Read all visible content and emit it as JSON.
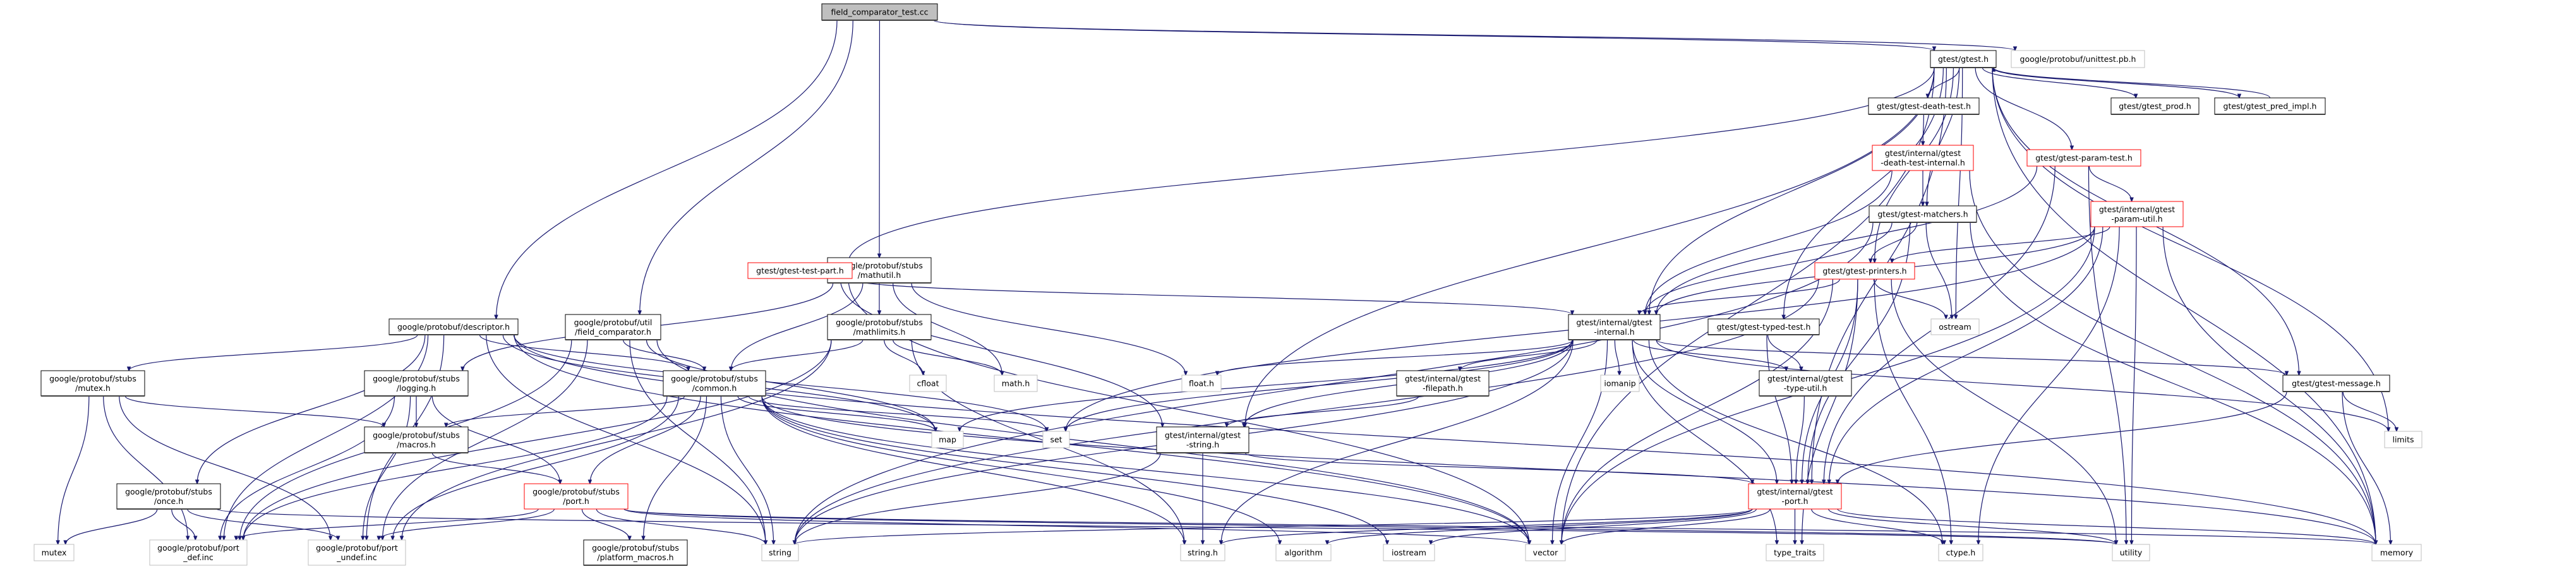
{
  "title": "field_comparator_test.cc",
  "colors": {
    "edge": "#191970",
    "root_fill": "#bfbfbf",
    "node_border": "#000000",
    "truncated_border": "#ff0000",
    "external_border": "#bfbfbf"
  },
  "nodes": {
    "root": {
      "label": "field_comparator_test.cc",
      "kind": "root"
    },
    "descriptor": {
      "label": "google/protobuf/descriptor.h",
      "kind": "normal"
    },
    "fcmp": {
      "label": "google/protobuf/util\n/field_comparator.h",
      "kind": "normal"
    },
    "mathutil": {
      "label": "google/protobuf/stubs\n/mathutil.h",
      "kind": "normal"
    },
    "mathlimits": {
      "label": "google/protobuf/stubs\n/mathlimits.h",
      "kind": "normal"
    },
    "mutexh": {
      "label": "google/protobuf/stubs\n/mutex.h",
      "kind": "normal"
    },
    "logging": {
      "label": "google/protobuf/stubs\n/logging.h",
      "kind": "normal"
    },
    "common": {
      "label": "google/protobuf/stubs\n/common.h",
      "kind": "normal"
    },
    "macros": {
      "label": "google/protobuf/stubs\n/macros.h",
      "kind": "normal"
    },
    "once": {
      "label": "google/protobuf/stubs\n/once.h",
      "kind": "normal"
    },
    "port": {
      "label": "google/protobuf/stubs\n/port.h",
      "kind": "truncated"
    },
    "mutex": {
      "label": "mutex",
      "kind": "external"
    },
    "portdef": {
      "label": "google/protobuf/port\n_def.inc",
      "kind": "external"
    },
    "portundef": {
      "label": "google/protobuf/port\n_undef.inc",
      "kind": "external"
    },
    "platform": {
      "label": "google/protobuf/stubs\n/platform_macros.h",
      "kind": "normal"
    },
    "string": {
      "label": "string",
      "kind": "external"
    },
    "cfloat": {
      "label": "cfloat",
      "kind": "external"
    },
    "math": {
      "label": "math.h",
      "kind": "external"
    },
    "float": {
      "label": "float.h",
      "kind": "external"
    },
    "internal": {
      "label": "gtest/internal/gtest\n-internal.h",
      "kind": "normal"
    },
    "filepath": {
      "label": "gtest/internal/gtest\n-filepath.h",
      "kind": "normal"
    },
    "iomanip": {
      "label": "iomanip",
      "kind": "external"
    },
    "map": {
      "label": "map",
      "kind": "external"
    },
    "set": {
      "label": "set",
      "kind": "external"
    },
    "gstring": {
      "label": "gtest/internal/gtest\n-string.h",
      "kind": "normal"
    },
    "stringh": {
      "label": "string.h",
      "kind": "external"
    },
    "algorithm": {
      "label": "algorithm",
      "kind": "external"
    },
    "iostream": {
      "label": "iostream",
      "kind": "external"
    },
    "vector": {
      "label": "vector",
      "kind": "external"
    },
    "gtest": {
      "label": "gtest/gtest.h",
      "kind": "normal"
    },
    "unittest": {
      "label": "google/protobuf/unittest.pb.h",
      "kind": "external"
    },
    "death": {
      "label": "gtest/gtest-death-test.h",
      "kind": "normal"
    },
    "prod": {
      "label": "gtest/gtest_prod.h",
      "kind": "normal"
    },
    "pred": {
      "label": "gtest/gtest_pred_impl.h",
      "kind": "normal"
    },
    "deathint": {
      "label": "gtest/internal/gtest\n-death-test-internal.h",
      "kind": "truncated"
    },
    "param": {
      "label": "gtest/gtest-param-test.h",
      "kind": "truncated"
    },
    "matchers": {
      "label": "gtest/gtest-matchers.h",
      "kind": "normal"
    },
    "paramutil": {
      "label": "gtest/internal/gtest\n-param-util.h",
      "kind": "truncated"
    },
    "printers": {
      "label": "gtest/gtest-printers.h",
      "kind": "truncated"
    },
    "testpart": {
      "label": "gtest/gtest-test-part.h",
      "kind": "truncated"
    },
    "typed": {
      "label": "gtest/gtest-typed-test.h",
      "kind": "normal"
    },
    "ostream": {
      "label": "ostream",
      "kind": "external"
    },
    "typeutil": {
      "label": "gtest/internal/gtest\n-type-util.h",
      "kind": "normal"
    },
    "message": {
      "label": "gtest/gtest-message.h",
      "kind": "normal"
    },
    "limits": {
      "label": "limits",
      "kind": "external"
    },
    "gport": {
      "label": "gtest/internal/gtest\n-port.h",
      "kind": "truncated"
    },
    "typetraits": {
      "label": "type_traits",
      "kind": "external"
    },
    "ctype": {
      "label": "ctype.h",
      "kind": "external"
    },
    "utility": {
      "label": "utility",
      "kind": "external"
    },
    "memory": {
      "label": "memory",
      "kind": "external"
    }
  },
  "edges": [
    [
      "root",
      "descriptor"
    ],
    [
      "root",
      "fcmp"
    ],
    [
      "root",
      "mathutil"
    ],
    [
      "root",
      "gtest"
    ],
    [
      "root",
      "unittest"
    ],
    [
      "descriptor",
      "mutexh"
    ],
    [
      "descriptor",
      "once"
    ],
    [
      "descriptor",
      "common"
    ],
    [
      "descriptor",
      "portdef"
    ],
    [
      "descriptor",
      "portundef"
    ],
    [
      "descriptor",
      "string"
    ],
    [
      "descriptor",
      "map"
    ],
    [
      "descriptor",
      "set"
    ],
    [
      "descriptor",
      "vector"
    ],
    [
      "descriptor",
      "memory"
    ],
    [
      "fcmp",
      "common"
    ],
    [
      "fcmp",
      "portdef"
    ],
    [
      "fcmp",
      "portundef"
    ],
    [
      "fcmp",
      "string"
    ],
    [
      "fcmp",
      "map"
    ],
    [
      "fcmp",
      "vector"
    ],
    [
      "mathutil",
      "logging"
    ],
    [
      "mathutil",
      "common"
    ],
    [
      "mathutil",
      "mathlimits"
    ],
    [
      "mathutil",
      "math"
    ],
    [
      "mathutil",
      "float"
    ],
    [
      "mathlimits",
      "common"
    ],
    [
      "mathlimits",
      "cfloat"
    ],
    [
      "mathlimits",
      "math"
    ],
    [
      "mathlimits",
      "stringh"
    ],
    [
      "mathlimits",
      "portdef"
    ],
    [
      "mathlimits",
      "portundef"
    ],
    [
      "mutexh",
      "mutex"
    ],
    [
      "mutexh",
      "macros"
    ],
    [
      "mutexh",
      "portdef"
    ],
    [
      "mutexh",
      "portundef"
    ],
    [
      "logging",
      "macros"
    ],
    [
      "logging",
      "port"
    ],
    [
      "logging",
      "portdef"
    ],
    [
      "logging",
      "portundef"
    ],
    [
      "common",
      "macros"
    ],
    [
      "common",
      "port"
    ],
    [
      "common",
      "platform"
    ],
    [
      "common",
      "portdef"
    ],
    [
      "common",
      "portundef"
    ],
    [
      "common",
      "string"
    ],
    [
      "common",
      "algorithm"
    ],
    [
      "common",
      "iostream"
    ],
    [
      "common",
      "map"
    ],
    [
      "common",
      "set"
    ],
    [
      "common",
      "vector"
    ],
    [
      "common",
      "memory"
    ],
    [
      "common",
      "stringh"
    ],
    [
      "macros",
      "port"
    ],
    [
      "once",
      "mutex"
    ],
    [
      "once",
      "portdef"
    ],
    [
      "once",
      "portundef"
    ],
    [
      "once",
      "utility"
    ],
    [
      "port",
      "portdef"
    ],
    [
      "port",
      "portundef"
    ],
    [
      "port",
      "platform"
    ],
    [
      "port",
      "string"
    ],
    [
      "port",
      "utility"
    ],
    [
      "port",
      "vector"
    ],
    [
      "port",
      "memory"
    ],
    [
      "gtest",
      "death"
    ],
    [
      "gtest",
      "prod"
    ],
    [
      "gtest",
      "pred"
    ],
    [
      "gtest",
      "param"
    ],
    [
      "gtest",
      "matchers"
    ],
    [
      "gtest",
      "printers"
    ],
    [
      "gtest",
      "testpart"
    ],
    [
      "gtest",
      "typed"
    ],
    [
      "gtest",
      "message"
    ],
    [
      "gtest",
      "internal"
    ],
    [
      "gtest",
      "gstring"
    ],
    [
      "gtest",
      "ostream"
    ],
    [
      "gtest",
      "vector"
    ],
    [
      "gtest",
      "limits"
    ],
    [
      "gtest",
      "memory"
    ],
    [
      "gtest",
      "gport"
    ],
    [
      "pred",
      "gtest"
    ],
    [
      "death",
      "deathint"
    ],
    [
      "deathint",
      "matchers"
    ],
    [
      "deathint",
      "internal"
    ],
    [
      "deathint",
      "memory"
    ],
    [
      "param",
      "paramutil"
    ],
    [
      "param",
      "internal"
    ],
    [
      "param",
      "gport"
    ],
    [
      "param",
      "utility"
    ],
    [
      "matchers",
      "printers"
    ],
    [
      "matchers",
      "internal"
    ],
    [
      "matchers",
      "gport"
    ],
    [
      "matchers",
      "ostream"
    ],
    [
      "matchers",
      "string"
    ],
    [
      "matchers",
      "memory"
    ],
    [
      "paramutil",
      "printers"
    ],
    [
      "paramutil",
      "internal"
    ],
    [
      "paramutil",
      "gport"
    ],
    [
      "paramutil",
      "utility"
    ],
    [
      "paramutil",
      "memory"
    ],
    [
      "paramutil",
      "ctype"
    ],
    [
      "paramutil",
      "vector"
    ],
    [
      "paramutil",
      "set"
    ],
    [
      "printers",
      "internal"
    ],
    [
      "printers",
      "gport"
    ],
    [
      "printers",
      "ostream"
    ],
    [
      "printers",
      "utility"
    ],
    [
      "printers",
      "vector"
    ],
    [
      "printers",
      "typetraits"
    ],
    [
      "printers",
      "string"
    ],
    [
      "printers",
      "ctype"
    ],
    [
      "testpart",
      "internal"
    ],
    [
      "testpart",
      "gstring"
    ],
    [
      "testpart",
      "vector"
    ],
    [
      "typed",
      "typeutil"
    ],
    [
      "typed",
      "gport"
    ],
    [
      "internal",
      "gport"
    ],
    [
      "internal",
      "message"
    ],
    [
      "internal",
      "filepath"
    ],
    [
      "internal",
      "gstring"
    ],
    [
      "internal",
      "typeutil"
    ],
    [
      "internal",
      "float"
    ],
    [
      "internal",
      "iomanip"
    ],
    [
      "internal",
      "map"
    ],
    [
      "internal",
      "set"
    ],
    [
      "internal",
      "string"
    ],
    [
      "internal",
      "stringh"
    ],
    [
      "internal",
      "vector"
    ],
    [
      "internal",
      "typetraits"
    ],
    [
      "internal",
      "limits"
    ],
    [
      "internal",
      "ctype"
    ],
    [
      "filepath",
      "gstring"
    ],
    [
      "gstring",
      "gport"
    ],
    [
      "gstring",
      "string"
    ],
    [
      "gstring",
      "stringh"
    ],
    [
      "typeutil",
      "gport"
    ],
    [
      "message",
      "gport"
    ],
    [
      "message",
      "limits"
    ],
    [
      "message",
      "memory"
    ],
    [
      "gport",
      "string"
    ],
    [
      "gport",
      "stringh"
    ],
    [
      "gport",
      "algorithm"
    ],
    [
      "gport",
      "iostream"
    ],
    [
      "gport",
      "vector"
    ],
    [
      "gport",
      "typetraits"
    ],
    [
      "gport",
      "ctype"
    ],
    [
      "gport",
      "utility"
    ],
    [
      "gport",
      "memory"
    ]
  ]
}
